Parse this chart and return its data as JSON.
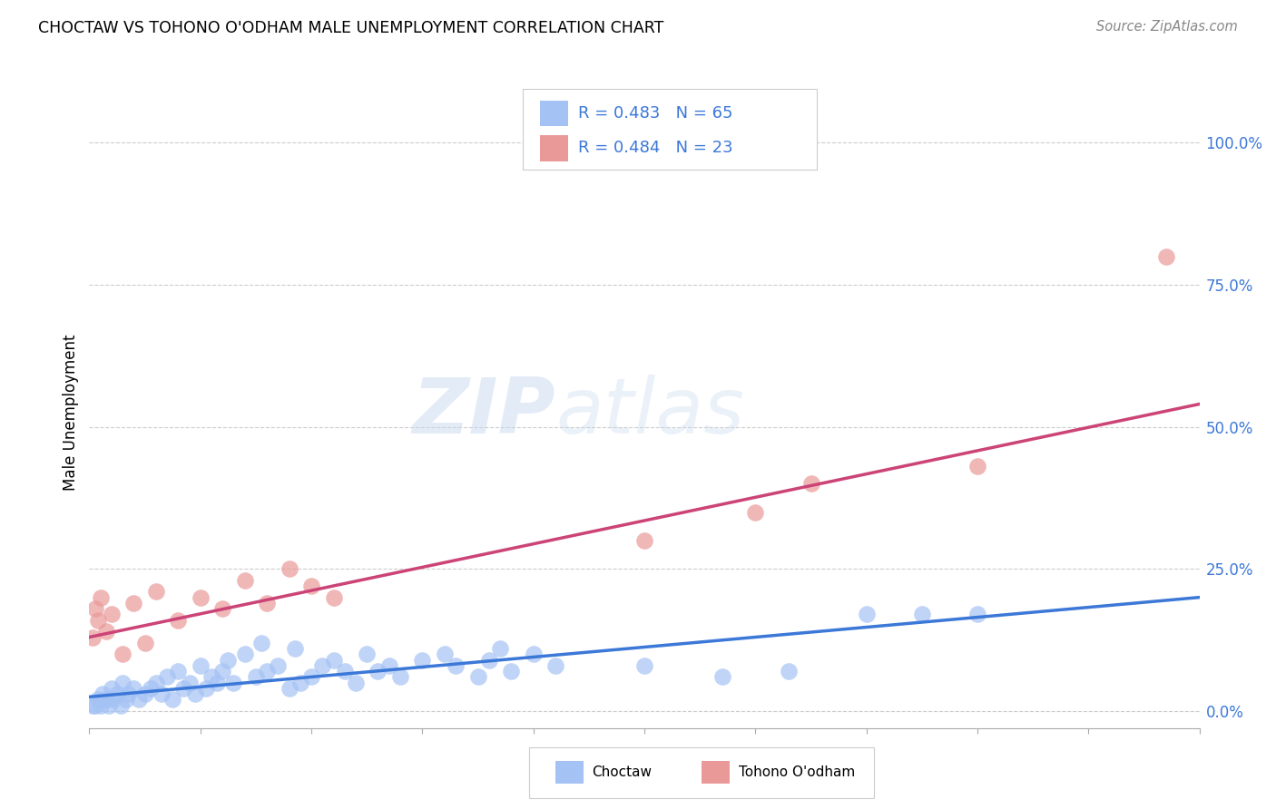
{
  "title": "CHOCTAW VS TOHONO O'ODHAM MALE UNEMPLOYMENT CORRELATION CHART",
  "source": "Source: ZipAtlas.com",
  "ylabel": "Male Unemployment",
  "watermark_zip": "ZIP",
  "watermark_atlas": "atlas",
  "choctaw_color": "#a4c2f4",
  "choctaw_color_line": "#3c78d8",
  "tohono_color": "#ea9999",
  "tohono_color_line": "#cc4477",
  "legend_color": "#3c78d8",
  "choctaw_R": 0.483,
  "choctaw_N": 65,
  "tohono_R": 0.484,
  "tohono_N": 23,
  "ytick_values": [
    0,
    25,
    50,
    75,
    100
  ],
  "xlim": [
    0,
    100
  ],
  "ylim": [
    -3,
    108
  ],
  "choctaw_x": [
    0.3,
    0.5,
    0.8,
    1.0,
    1.2,
    1.5,
    1.8,
    2.0,
    2.2,
    2.5,
    2.8,
    3.0,
    3.3,
    3.5,
    4.0,
    4.5,
    5.0,
    5.5,
    6.0,
    6.5,
    7.0,
    7.5,
    8.0,
    8.5,
    9.0,
    9.5,
    10.0,
    10.5,
    11.0,
    11.5,
    12.0,
    12.5,
    13.0,
    14.0,
    15.0,
    15.5,
    16.0,
    17.0,
    18.0,
    18.5,
    19.0,
    20.0,
    21.0,
    22.0,
    23.0,
    24.0,
    25.0,
    26.0,
    27.0,
    28.0,
    30.0,
    32.0,
    33.0,
    35.0,
    36.0,
    37.0,
    38.0,
    40.0,
    42.0,
    50.0,
    57.0,
    63.0,
    70.0,
    75.0,
    80.0
  ],
  "choctaw_y": [
    1,
    1,
    2,
    1,
    3,
    2,
    1,
    4,
    2,
    3,
    1,
    5,
    2,
    3,
    4,
    2,
    3,
    4,
    5,
    3,
    6,
    2,
    7,
    4,
    5,
    3,
    8,
    4,
    6,
    5,
    7,
    9,
    5,
    10,
    6,
    12,
    7,
    8,
    4,
    11,
    5,
    6,
    8,
    9,
    7,
    5,
    10,
    7,
    8,
    6,
    9,
    10,
    8,
    6,
    9,
    11,
    7,
    10,
    8,
    8,
    6,
    7,
    17,
    17,
    17
  ],
  "tohono_x": [
    0.3,
    0.5,
    0.8,
    1.0,
    1.5,
    2.0,
    3.0,
    4.0,
    5.0,
    6.0,
    8.0,
    10.0,
    12.0,
    14.0,
    16.0,
    18.0,
    20.0,
    22.0,
    50.0,
    60.0,
    65.0,
    80.0,
    97.0
  ],
  "tohono_y": [
    13,
    18,
    16,
    20,
    14,
    17,
    10,
    19,
    12,
    21,
    16,
    20,
    18,
    23,
    19,
    25,
    22,
    20,
    30,
    35,
    40,
    43,
    80
  ],
  "regression_choctaw_x0": 0,
  "regression_choctaw_y0": 2.5,
  "regression_choctaw_x1": 100,
  "regression_choctaw_y1": 20.0,
  "regression_tohono_x0": 0,
  "regression_tohono_y0": 13.0,
  "regression_tohono_x1": 100,
  "regression_tohono_y1": 54.0
}
